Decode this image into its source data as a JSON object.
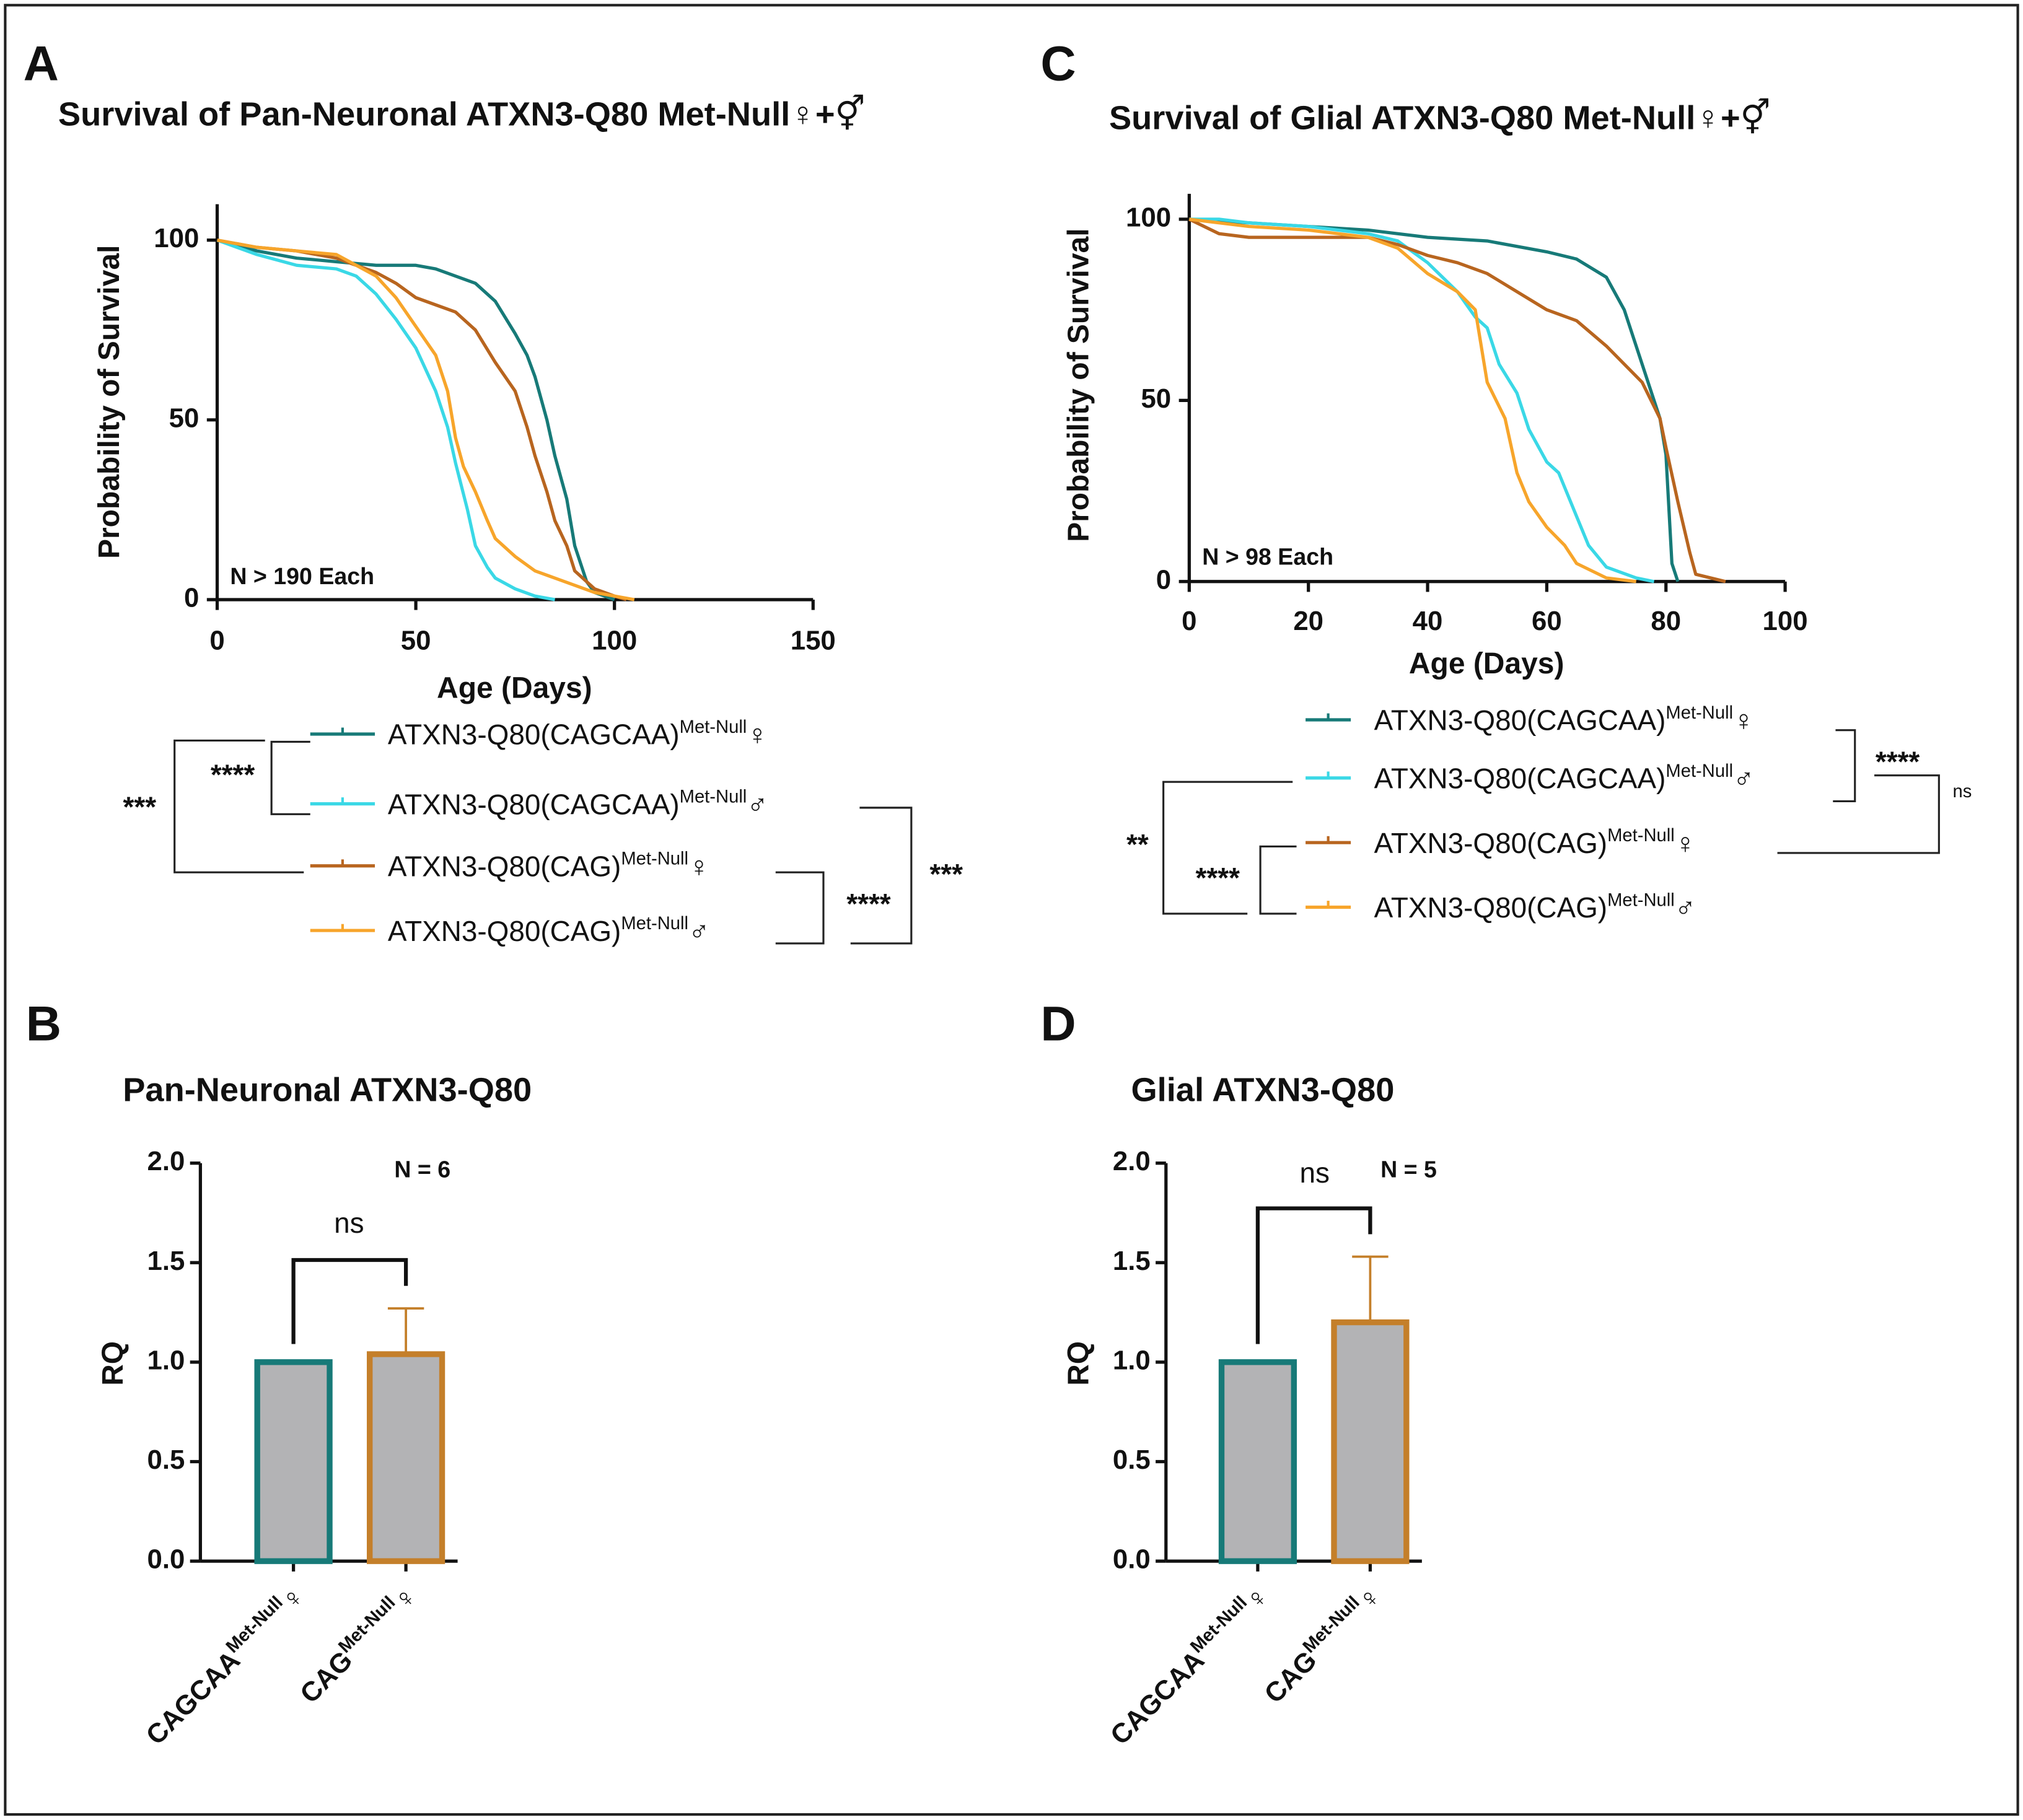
{
  "chart_data": [
    {
      "type": "line",
      "panel": "A",
      "title": "Survival of Pan-Neuronal ATXN3-Q80 Met-Null♀+⚥",
      "xlabel": "Age (Days)",
      "ylabel": "Probability of Survival",
      "note": "N > 190 Each",
      "xlim": [
        0,
        150
      ],
      "xticks": [
        0,
        50,
        100,
        150
      ],
      "ylim": [
        0,
        110
      ],
      "yticks": [
        0,
        50,
        100
      ],
      "series": [
        {
          "name": "ATXN3-Q80(CAGCAA)",
          "name_sup": "Met-Null",
          "symbol": "♀",
          "color": "#177a78",
          "x": [
            0,
            10,
            20,
            30,
            40,
            50,
            55,
            60,
            65,
            70,
            75,
            78,
            80,
            83,
            85,
            88,
            90,
            93,
            95,
            100
          ],
          "values": [
            100,
            97,
            95,
            94,
            93,
            93,
            92,
            90,
            88,
            83,
            74,
            68,
            62,
            50,
            40,
            28,
            15,
            5,
            2,
            0
          ]
        },
        {
          "name": "ATXN3-Q80(CAGCAA)",
          "name_sup": "Met-Null",
          "symbol": "♂",
          "color": "#3ad8e6",
          "x": [
            0,
            10,
            20,
            30,
            35,
            40,
            45,
            50,
            55,
            58,
            60,
            63,
            65,
            68,
            70,
            75,
            80,
            85
          ],
          "values": [
            100,
            96,
            93,
            92,
            90,
            85,
            78,
            70,
            58,
            48,
            38,
            25,
            15,
            9,
            6,
            3,
            1,
            0
          ]
        },
        {
          "name": "ATXN3-Q80(CAG)",
          "name_sup": "Met-Null",
          "symbol": "♀",
          "color": "#b8651f",
          "x": [
            0,
            10,
            20,
            30,
            40,
            45,
            50,
            55,
            60,
            65,
            70,
            75,
            78,
            80,
            83,
            85,
            88,
            90,
            95,
            100,
            103
          ],
          "values": [
            100,
            98,
            97,
            95,
            91,
            88,
            84,
            82,
            80,
            75,
            66,
            58,
            48,
            40,
            30,
            22,
            15,
            8,
            3,
            1,
            0
          ]
        },
        {
          "name": "ATXN3-Q80(CAG)",
          "name_sup": "Met-Null",
          "symbol": "♂",
          "color": "#f7a52b",
          "x": [
            0,
            10,
            20,
            30,
            40,
            45,
            50,
            55,
            58,
            60,
            62,
            65,
            68,
            70,
            75,
            80,
            85,
            90,
            95,
            100,
            105
          ],
          "values": [
            100,
            98,
            97,
            96,
            90,
            84,
            76,
            68,
            58,
            45,
            37,
            30,
            22,
            17,
            12,
            8,
            6,
            4,
            2,
            1,
            0
          ]
        }
      ],
      "significance": [
        "****",
        "***",
        "****",
        "***"
      ]
    },
    {
      "type": "bar",
      "panel": "B",
      "title": "Pan-Neuronal ATXN3-Q80",
      "ylabel": "RQ",
      "categories": [
        "CAGCAA",
        "CAG"
      ],
      "category_sup": "Met-Null",
      "category_symbol": "♀",
      "values": [
        1.0,
        1.04
      ],
      "errors": [
        null,
        0.23
      ],
      "colors": [
        "#177a78",
        "#c47f2a"
      ],
      "fill": "#b3b3b5",
      "ylim": [
        0,
        2
      ],
      "yticks": [
        {
          "value": 0,
          "label": "0.0"
        },
        0.5,
        {
          "value": 1,
          "label": "1.0"
        },
        1.5,
        {
          "value": 2,
          "label": "2.0"
        }
      ],
      "significance": [
        "ns"
      ],
      "note": "N = 6"
    },
    {
      "type": "line",
      "panel": "C",
      "title": "Survival of Glial ATXN3-Q80 Met-Null♀+⚥",
      "xlabel": "Age (Days)",
      "ylabel": "Probability of Survival",
      "note": "N > 98 Each",
      "xlim": [
        0,
        100
      ],
      "xticks": [
        0,
        20,
        40,
        60,
        80,
        100
      ],
      "ylim": [
        0,
        107
      ],
      "yticks": [
        0,
        50,
        100
      ],
      "series": [
        {
          "name": "ATXN3-Q80(CAGCAA)",
          "name_sup": "Met-Null",
          "symbol": "♀",
          "color": "#177a78",
          "x": [
            0,
            10,
            20,
            30,
            40,
            50,
            60,
            65,
            70,
            73,
            75,
            77,
            79,
            80,
            81,
            82
          ],
          "values": [
            100,
            99,
            98,
            97,
            95,
            94,
            91,
            89,
            84,
            75,
            65,
            55,
            45,
            35,
            5,
            0
          ]
        },
        {
          "name": "ATXN3-Q80(CAGCAA)",
          "name_sup": "Met-Null",
          "symbol": "♂",
          "color": "#3ad8e6",
          "x": [
            0,
            5,
            10,
            20,
            30,
            35,
            40,
            45,
            48,
            50,
            52,
            55,
            57,
            60,
            62,
            65,
            67,
            70,
            75,
            78
          ],
          "values": [
            100,
            100,
            99,
            98,
            96,
            94,
            88,
            80,
            73,
            70,
            60,
            52,
            42,
            33,
            30,
            18,
            10,
            4,
            1,
            0
          ]
        },
        {
          "name": "ATXN3-Q80(CAG)",
          "name_sup": "Met-Null",
          "symbol": "♀",
          "color": "#b8651f",
          "x": [
            0,
            5,
            10,
            20,
            30,
            35,
            40,
            45,
            50,
            55,
            60,
            65,
            70,
            73,
            76,
            79,
            80,
            82,
            84,
            85,
            90
          ],
          "values": [
            100,
            96,
            95,
            95,
            95,
            93,
            90,
            88,
            85,
            80,
            75,
            72,
            65,
            60,
            55,
            45,
            37,
            22,
            8,
            2,
            0
          ]
        },
        {
          "name": "ATXN3-Q80(CAG)",
          "name_sup": "Met-Null",
          "symbol": "♂",
          "color": "#f7a52b",
          "x": [
            0,
            10,
            20,
            30,
            35,
            40,
            45,
            48,
            50,
            53,
            55,
            57,
            60,
            63,
            65,
            70,
            75
          ],
          "values": [
            100,
            98,
            97,
            95,
            92,
            85,
            80,
            75,
            55,
            45,
            30,
            22,
            15,
            10,
            5,
            1,
            0
          ]
        }
      ],
      "significance": [
        "****",
        "ns",
        "****",
        "**"
      ]
    },
    {
      "type": "bar",
      "panel": "D",
      "title": "Glial ATXN3-Q80",
      "ylabel": "RQ",
      "categories": [
        "CAGCAA",
        "CAG"
      ],
      "category_sup": "Met-Null",
      "category_symbol": "♀",
      "values": [
        1.0,
        1.2
      ],
      "errors": [
        null,
        0.33
      ],
      "colors": [
        "#177a78",
        "#c47f2a"
      ],
      "fill": "#b3b3b5",
      "ylim": [
        0,
        2
      ],
      "yticks": [
        {
          "value": 0,
          "label": "0.0"
        },
        0.5,
        {
          "value": 1,
          "label": "1.0"
        },
        1.5,
        {
          "value": 2,
          "label": "2.0"
        }
      ],
      "significance": [
        "ns"
      ],
      "note": "N = 5"
    }
  ]
}
